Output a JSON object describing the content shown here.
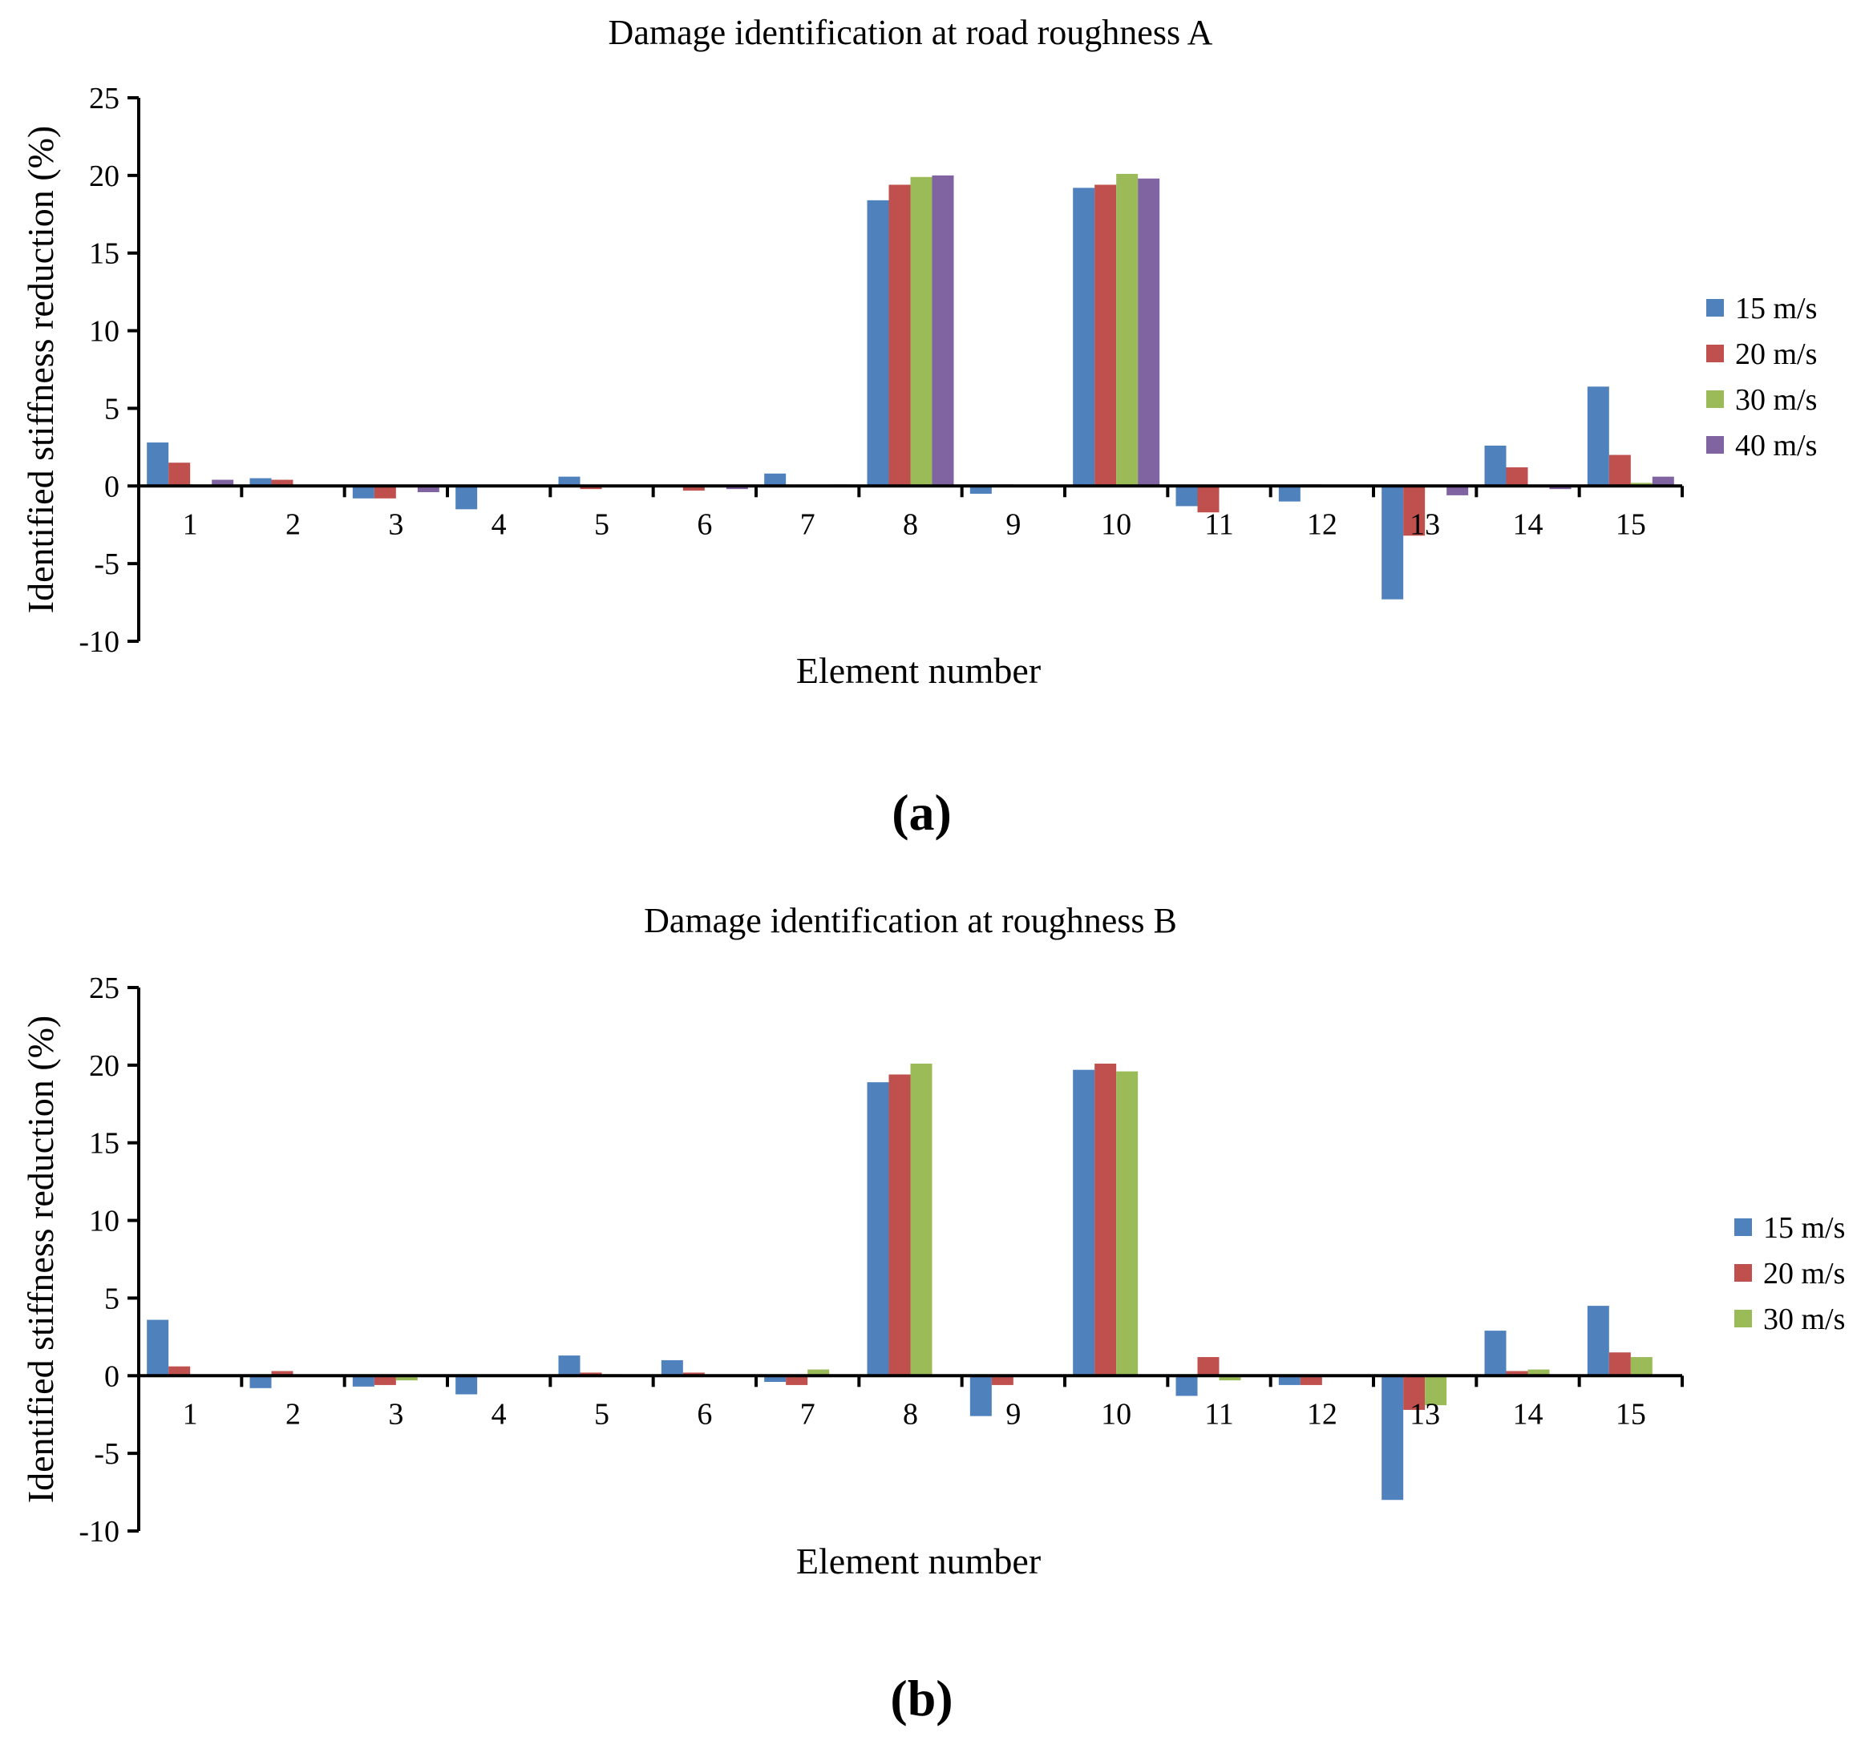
{
  "chart_data": [
    {
      "type": "bar",
      "panel_label": "(a)",
      "title": "Damage identification at road roughness A",
      "xlabel": "Element number",
      "ylabel": "Identified stiffness reduction (%)",
      "ylim": [
        -10,
        25
      ],
      "yticks": [
        -10,
        -5,
        0,
        5,
        10,
        15,
        20,
        25
      ],
      "categories": [
        "1",
        "2",
        "3",
        "4",
        "5",
        "6",
        "7",
        "8",
        "9",
        "10",
        "11",
        "12",
        "13",
        "14",
        "15"
      ],
      "legend_position": "right",
      "series": [
        {
          "name": "15 m/s",
          "color": "#4F81BD",
          "values": [
            2.8,
            0.5,
            -0.8,
            -1.5,
            0.6,
            0.0,
            0.8,
            18.4,
            -0.5,
            19.2,
            -1.3,
            -1.0,
            -7.3,
            2.6,
            6.4
          ]
        },
        {
          "name": "20 m/s",
          "color": "#C0504D",
          "values": [
            1.5,
            0.4,
            -0.8,
            0.0,
            -0.2,
            -0.3,
            0.0,
            19.4,
            0.1,
            19.4,
            -1.7,
            0.1,
            -3.2,
            1.2,
            2.0
          ]
        },
        {
          "name": "30 m/s",
          "color": "#9BBB59",
          "values": [
            0.1,
            0.0,
            0.0,
            0.0,
            0.0,
            0.0,
            0.0,
            19.9,
            0.0,
            20.1,
            0.0,
            0.0,
            0.0,
            0.0,
            0.2
          ]
        },
        {
          "name": "40 m/s",
          "color": "#8064A2",
          "values": [
            0.4,
            0.0,
            -0.4,
            0.0,
            0.0,
            -0.2,
            0.1,
            20.0,
            0.0,
            19.8,
            0.0,
            0.0,
            -0.6,
            -0.2,
            0.6
          ]
        }
      ]
    },
    {
      "type": "bar",
      "panel_label": "(b)",
      "title": "Damage identification at roughness B",
      "xlabel": "Element number",
      "ylabel": "Identified stiffness reduction (%)",
      "ylim": [
        -10,
        25
      ],
      "yticks": [
        -10,
        -5,
        0,
        5,
        10,
        15,
        20,
        25
      ],
      "categories": [
        "1",
        "2",
        "3",
        "4",
        "5",
        "6",
        "7",
        "8",
        "9",
        "10",
        "11",
        "12",
        "13",
        "14",
        "15"
      ],
      "legend_position": "right",
      "series": [
        {
          "name": "15 m/s",
          "color": "#4F81BD",
          "values": [
            3.6,
            -0.8,
            -0.7,
            -1.2,
            1.3,
            1.0,
            -0.4,
            18.9,
            -2.6,
            19.7,
            -1.3,
            -0.6,
            -8.0,
            2.9,
            4.5
          ]
        },
        {
          "name": "20 m/s",
          "color": "#C0504D",
          "values": [
            0.6,
            0.3,
            -0.6,
            0.0,
            0.2,
            0.2,
            -0.6,
            19.4,
            -0.6,
            20.1,
            1.2,
            -0.6,
            -2.2,
            0.3,
            1.5
          ]
        },
        {
          "name": "30 m/s",
          "color": "#9BBB59",
          "values": [
            0.0,
            0.0,
            -0.3,
            0.0,
            0.1,
            0.0,
            0.4,
            20.1,
            0.0,
            19.6,
            -0.3,
            0.0,
            -1.9,
            0.4,
            1.2
          ]
        }
      ]
    }
  ]
}
